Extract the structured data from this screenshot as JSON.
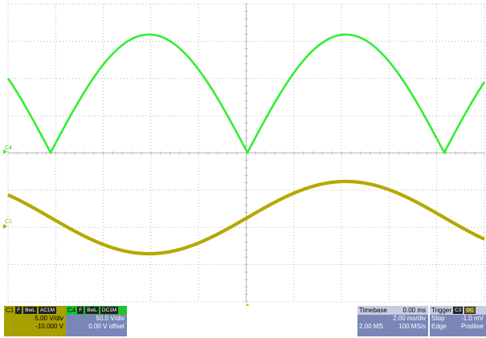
{
  "colors": {
    "c4_trace": "#33ee33",
    "c1_trace": "#b5a800",
    "grid": "#b8b8b8",
    "trigger_marker": "#e0b400"
  },
  "markers": {
    "c4": "C4",
    "c1": "C1"
  },
  "c1_panel": {
    "name": "C1",
    "tags": [
      "F",
      "BwL",
      "AC1M"
    ],
    "vdiv": "5.00 V/div",
    "offset": "-10.000 V"
  },
  "c4_panel": {
    "name": "C4",
    "tags": [
      "F",
      "BwL",
      "DC1M"
    ],
    "vdiv": "50.0 V/div",
    "offset": "0.00 V offset"
  },
  "timebase_panel": {
    "label": "Timebase",
    "delay": "0.00 ms",
    "tdiv": "2.00 ms/div",
    "samples": "2.00 MS",
    "rate": "100 MS/s"
  },
  "trigger_panel": {
    "label": "Trigger",
    "tag": "C3",
    "coupling": "DC",
    "mode": "Stop",
    "level": "-1.0 mV",
    "type": "Edge",
    "slope": "Positive"
  }
}
